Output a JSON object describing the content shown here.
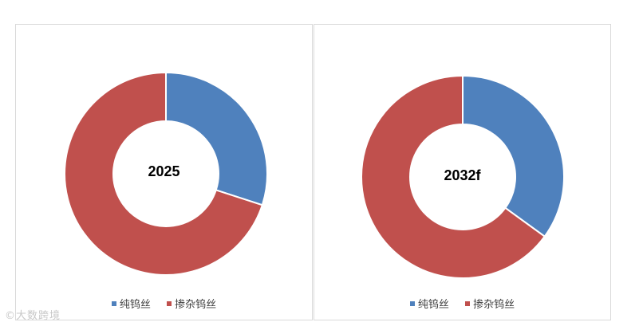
{
  "colors": {
    "pure": "#4F81BD",
    "doped": "#C0504D"
  },
  "chart_data": [
    {
      "type": "pie",
      "center_label": "2025",
      "categories": [
        "纯钨丝",
        "掺杂钨丝"
      ],
      "values": [
        30,
        70
      ],
      "legend_position": "bottom"
    },
    {
      "type": "pie",
      "center_label": "2032f",
      "categories": [
        "纯钨丝",
        "掺杂钨丝"
      ],
      "values": [
        35,
        65
      ],
      "legend_position": "bottom"
    }
  ],
  "watermark": "©大数跨境"
}
